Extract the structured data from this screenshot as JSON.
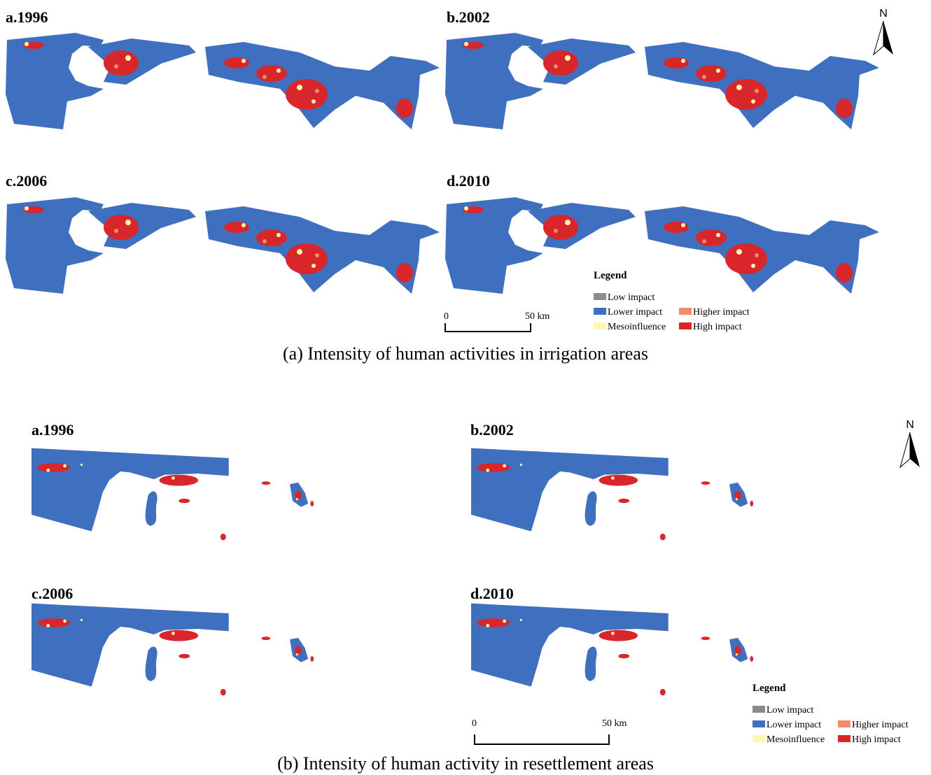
{
  "panels": [
    {
      "maps": [
        {
          "label": "a.1996"
        },
        {
          "label": "b.2002"
        },
        {
          "label": "c.2006"
        },
        {
          "label": "d.2010"
        }
      ],
      "north": "N",
      "legend": {
        "title": "Legend",
        "items": [
          {
            "label": "Low impact",
            "color": "#8c8c8c"
          },
          {
            "label": "Lower impact",
            "color": "#3f6fbf"
          },
          {
            "label": "Higher impact",
            "color": "#f08c6a"
          },
          {
            "label": "Mesoinfluence",
            "color": "#fff5b0"
          },
          {
            "label": "High impact",
            "color": "#d9262a"
          }
        ]
      },
      "scale": {
        "start": "0",
        "end": "50 km"
      },
      "caption": "(a) Intensity of human activities in irrigation areas"
    },
    {
      "maps": [
        {
          "label": "a.1996"
        },
        {
          "label": "b.2002"
        },
        {
          "label": "c.2006"
        },
        {
          "label": "d.2010"
        }
      ],
      "north": "N",
      "legend": {
        "title": "Legend",
        "items": [
          {
            "label": "Low impact",
            "color": "#8c8c8c"
          },
          {
            "label": "Lower impact",
            "color": "#3f6fbf"
          },
          {
            "label": "Higher impact",
            "color": "#f08c6a"
          },
          {
            "label": "Mesoinfluence",
            "color": "#fff5b0"
          },
          {
            "label": "High impact",
            "color": "#d9262a"
          }
        ]
      },
      "scale": {
        "start": "0",
        "end": "50 km"
      },
      "caption": "(b) Intensity of human activity in resettlement areas"
    }
  ]
}
